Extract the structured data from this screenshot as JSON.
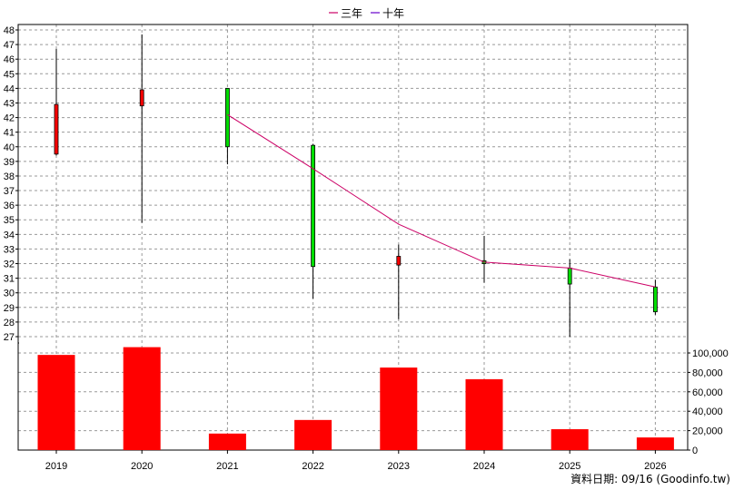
{
  "chart_data": {
    "type": "candlestick+bar",
    "categories": [
      "2019",
      "2020",
      "2021",
      "2022",
      "2023",
      "2024",
      "2025",
      "2026"
    ],
    "price_axis": {
      "min": 27,
      "max": 48,
      "ticks": [
        27,
        28,
        29,
        30,
        31,
        32,
        33,
        34,
        35,
        36,
        37,
        38,
        39,
        40,
        41,
        42,
        43,
        44,
        45,
        46,
        47,
        48
      ]
    },
    "candles": [
      {
        "x": "2019",
        "open": 39.5,
        "close": 42.9,
        "high": 46.7,
        "low": 39.4,
        "color": "#ff0000"
      },
      {
        "x": "2020",
        "open": 42.8,
        "close": 43.9,
        "high": 47.7,
        "low": 34.8,
        "color": "#ff0000"
      },
      {
        "x": "2021",
        "open": 44.0,
        "close": 40.0,
        "high": 44.0,
        "low": 38.8,
        "color": "#00dd00"
      },
      {
        "x": "2022",
        "open": 40.1,
        "close": 31.8,
        "high": 40.2,
        "low": 29.6,
        "color": "#00dd00"
      },
      {
        "x": "2023",
        "open": 31.9,
        "close": 32.5,
        "high": 33.3,
        "low": 28.2,
        "color": "#ff0000"
      },
      {
        "x": "2024",
        "open": 32.2,
        "close": 32.0,
        "high": 33.9,
        "low": 30.7,
        "color": "#00dd00"
      },
      {
        "x": "2025",
        "open": 31.7,
        "close": 30.6,
        "high": 32.3,
        "low": 27.0,
        "color": "#00dd00"
      },
      {
        "x": "2026",
        "open": 30.4,
        "close": 28.7,
        "high": 30.9,
        "low": 28.5,
        "color": "#00dd00"
      }
    ],
    "ma_lines": [
      {
        "name": "三年",
        "color": "#cc0066",
        "points": [
          [
            "2021",
            42.2
          ],
          [
            "2022",
            38.5
          ],
          [
            "2023",
            34.7
          ],
          [
            "2024",
            32.1
          ],
          [
            "2025",
            31.7
          ],
          [
            "2026",
            30.4
          ]
        ]
      },
      {
        "name": "十年",
        "color": "#6600cc",
        "points": []
      }
    ],
    "volume_axis": {
      "min": 0,
      "max": 100000,
      "ticks": [
        0,
        20000,
        40000,
        60000,
        80000,
        100000
      ],
      "tick_labels": [
        "0",
        "20,000",
        "40,000",
        "60,000",
        "80,000",
        "100,000"
      ]
    },
    "volume": {
      "values": [
        98000,
        106000,
        17000,
        31000,
        85000,
        73000,
        21500,
        13000
      ],
      "color": "#ff0000"
    },
    "grid": true,
    "legend_position": "top-center"
  },
  "footer": {
    "data_date": "資料日期: 09/16  (Goodinfo.tw)"
  }
}
